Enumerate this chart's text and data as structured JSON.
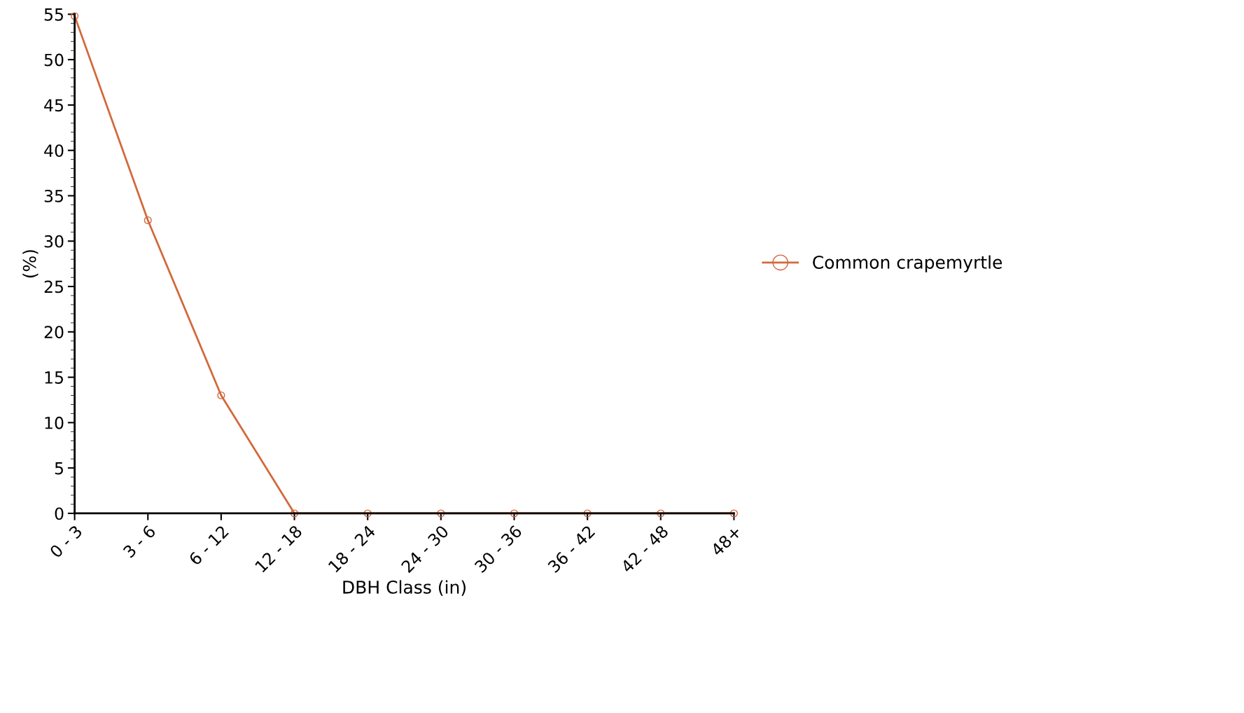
{
  "chart_data": {
    "type": "line",
    "xlabel": "DBH Class (in)",
    "ylabel": "(%)",
    "categories": [
      "0 - 3",
      "3 - 6",
      "6 - 12",
      "12 - 18",
      "18 - 24",
      "24 - 30",
      "30 - 36",
      "36 - 42",
      "42 - 48",
      "48+"
    ],
    "series": [
      {
        "name": "Common crapemyrtle",
        "color": "#d2693c",
        "values": [
          54.8,
          32.3,
          13.0,
          0,
          0,
          0,
          0,
          0,
          0,
          0
        ]
      }
    ],
    "ylim": [
      0,
      55
    ],
    "yticks": [
      0,
      5,
      10,
      15,
      20,
      25,
      30,
      35,
      40,
      45,
      50,
      55
    ],
    "grid": false,
    "legend": "right",
    "marker": "circle",
    "line_style": "solid"
  }
}
